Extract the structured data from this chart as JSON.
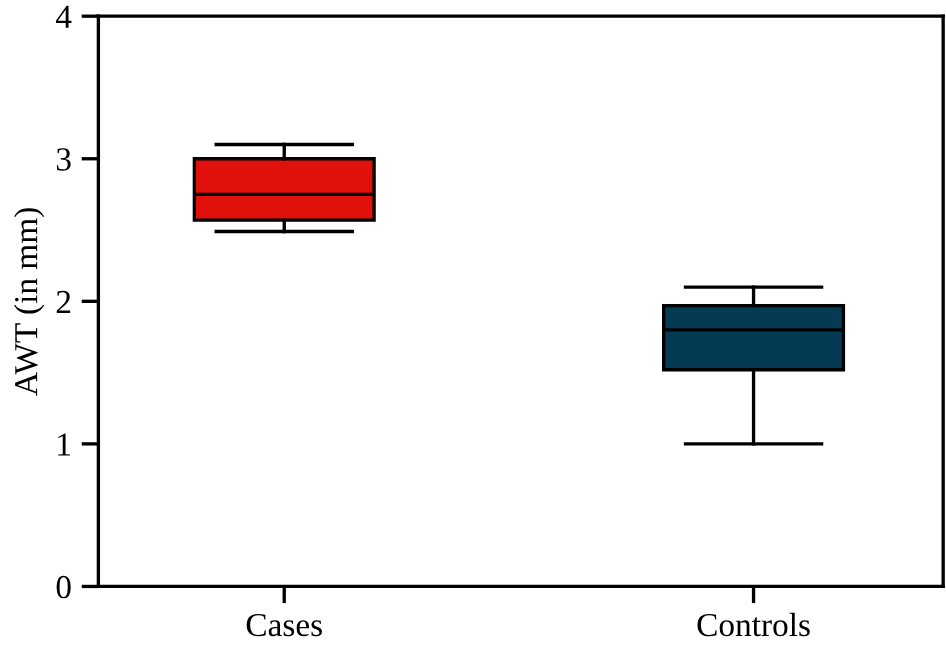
{
  "chart_data": {
    "type": "box",
    "ylabel": "AWT (in mm)",
    "categories": [
      "Cases",
      "Controls"
    ],
    "colors": [
      "#e0100a",
      "#053a54"
    ],
    "boxes": [
      {
        "low": 2.49,
        "q1": 2.57,
        "median": 2.75,
        "q3": 3.0,
        "high": 3.1
      },
      {
        "low": 1.0,
        "q1": 1.52,
        "median": 1.8,
        "q3": 1.97,
        "high": 2.1
      }
    ],
    "ylim": [
      0,
      4
    ],
    "yticks": [
      0,
      1,
      2,
      3,
      4
    ],
    "grid": false
  }
}
